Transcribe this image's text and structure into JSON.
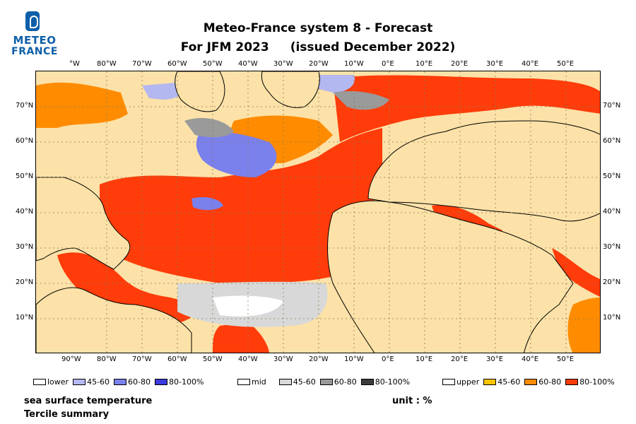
{
  "logo": {
    "line1": "METEO",
    "line2": "FRANCE"
  },
  "title": {
    "line1": "Meteo-France system 8  -  Forecast",
    "line2a": "For JFM 2023",
    "line2b": "(issued December 2022)"
  },
  "axes": {
    "top_lon": [
      "°W",
      "80°W",
      "70°W",
      "60°W",
      "50°W",
      "40°W",
      "30°W",
      "20°W",
      "10°W",
      "0°E",
      "10°E",
      "20°E",
      "30°E",
      "40°E",
      "50°E"
    ],
    "bottom_lon": [
      "90°W",
      "80°W",
      "70°W",
      "60°W",
      "50°W",
      "40°W",
      "30°W",
      "20°W",
      "10°W",
      "0°E",
      "10°E",
      "20°E",
      "30°E",
      "40°E",
      "50°E"
    ],
    "lat": [
      "70°N",
      "60°N",
      "50°N",
      "40°N",
      "30°N",
      "20°N",
      "10°N"
    ]
  },
  "legend": {
    "lower": {
      "title": "lower",
      "items": [
        "45-60",
        "60-80",
        "80-100%"
      ],
      "colors": [
        "#b4b8f0",
        "#7a80ec",
        "#3a3ae0"
      ]
    },
    "mid": {
      "title": "mid",
      "items": [
        "45-60",
        "60-80",
        "80-100%"
      ],
      "colors": [
        "#d8d8d8",
        "#9a9a9a",
        "#3c3c3c"
      ]
    },
    "upper": {
      "title": "upper",
      "items": [
        "45-60",
        "60-80",
        "80-100%"
      ],
      "colors": [
        "#ffc400",
        "#ff8c00",
        "#ff3c0a"
      ]
    }
  },
  "caption": {
    "variable": "sea surface temperature",
    "summary": "Tercile summary",
    "unit": "unit : %"
  },
  "colors": {
    "land": "#fce2a8",
    "ocean_background": "#fce2a8"
  }
}
